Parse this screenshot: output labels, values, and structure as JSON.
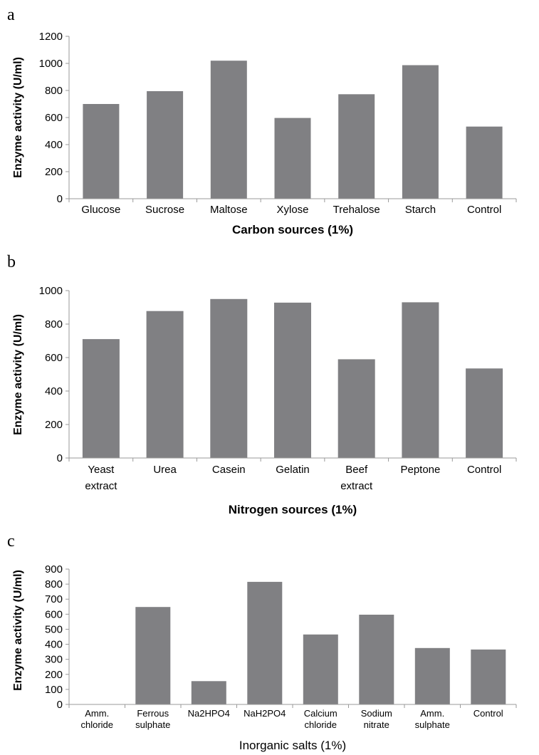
{
  "colors": {
    "bar": "#808083",
    "axis": "#9a9a9a"
  },
  "chart_data": [
    {
      "panel": "a",
      "type": "bar",
      "categories": [
        [
          "Glucose"
        ],
        [
          "Sucrose"
        ],
        [
          "Maltose"
        ],
        [
          "Xylose"
        ],
        [
          "Trehalose"
        ],
        [
          "Starch"
        ],
        [
          "Control"
        ]
      ],
      "values": [
        700,
        795,
        1020,
        597,
        772,
        987,
        533
      ],
      "xlabel": "Carbon sources (1%)",
      "ylabel": "Enzyme activity (U/ml)",
      "ylim": [
        0,
        1200
      ],
      "yticks": [
        "0",
        "200",
        "400",
        "600",
        "800",
        "1000",
        "1200"
      ],
      "grid": false,
      "legend": "none"
    },
    {
      "panel": "b",
      "type": "bar",
      "categories": [
        [
          "Yeast",
          "extract"
        ],
        [
          "Urea"
        ],
        [
          "Casein"
        ],
        [
          "Gelatin"
        ],
        [
          "Beef",
          "extract"
        ],
        [
          "Peptone"
        ],
        [
          "Control"
        ]
      ],
      "values": [
        710,
        878,
        950,
        928,
        590,
        930,
        535
      ],
      "xlabel": "Nitrogen sources (1%)",
      "ylabel": "Enzyme activity (U/ml)",
      "ylim": [
        0,
        1000
      ],
      "yticks": [
        "0",
        "200",
        "400",
        "600",
        "800",
        "1000"
      ],
      "grid": false,
      "legend": "none"
    },
    {
      "panel": "c",
      "type": "bar",
      "categories": [
        [
          "Amm.",
          "chloride"
        ],
        [
          "Ferrous",
          "sulphate"
        ],
        [
          "Na2HPO4"
        ],
        [
          "NaH2PO4"
        ],
        [
          "Calcium",
          "chloride"
        ],
        [
          "Sodium",
          "nitrate"
        ],
        [
          "Amm.",
          "sulphate"
        ],
        [
          "Control"
        ]
      ],
      "values": [
        0,
        648,
        155,
        815,
        465,
        597,
        375,
        365
      ],
      "xlabel": "Inorganic salts (1%)",
      "ylabel": "Enzyme activity (U/ml)",
      "ylim": [
        0,
        900
      ],
      "yticks": [
        "0",
        "100",
        "200",
        "300",
        "400",
        "500",
        "600",
        "700",
        "800",
        "900"
      ],
      "grid": false,
      "legend": "none"
    }
  ]
}
